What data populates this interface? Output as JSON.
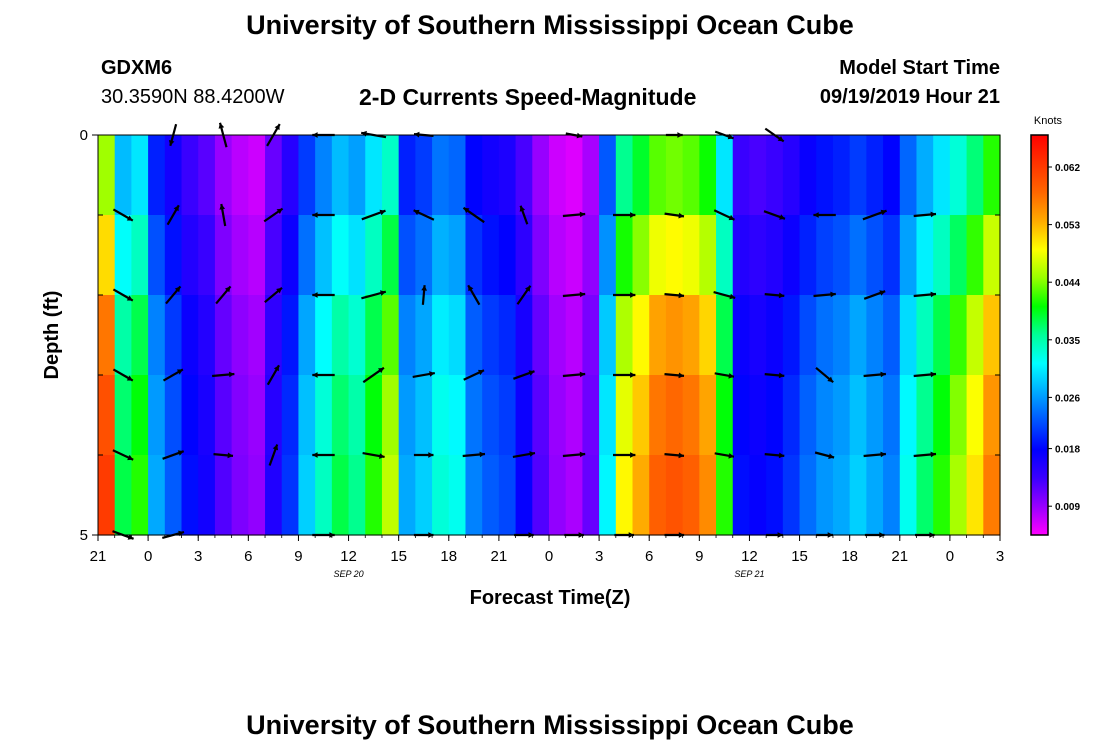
{
  "header": {
    "title": "University of Southern Mississippi Ocean Cube",
    "station": "GDXM6",
    "coords": "30.3590N 88.4200W",
    "subtitle": "2-D Currents Speed-Magnitude",
    "model_label": "Model Start Time",
    "model_time": "09/19/2019 Hour 21"
  },
  "footer": {
    "title": "University of Southern Mississippi Ocean Cube"
  },
  "chart_data": {
    "type": "heatmap",
    "title": "2-D Currents Speed-Magnitude",
    "xlabel": "Forecast Time(Z)",
    "ylabel": "Depth (ft)",
    "x_ticks": [
      "21",
      "0",
      "3",
      "6",
      "9",
      "12",
      "15",
      "18",
      "21",
      "0",
      "3",
      "6",
      "9",
      "12",
      "15",
      "18",
      "21",
      "0",
      "3"
    ],
    "x_date_labels": [
      {
        "label": "SEP 20",
        "tick_index": 5
      },
      {
        "label": "SEP 21",
        "tick_index": 13
      }
    ],
    "y_ticks": [
      "0",
      "5"
    ],
    "ylim": [
      0,
      5
    ],
    "hours_span": 54,
    "depth_rows": 5,
    "colorbar": {
      "unit": "Knots",
      "ticks": [
        "0.062",
        "0.053",
        "0.044",
        "0.035",
        "0.026",
        "0.018",
        "0.009"
      ],
      "min": 0.0045,
      "max": 0.067,
      "colors": [
        "#ff00ff",
        "#9900ff",
        "#3a00ff",
        "#0000ff",
        "#0055ff",
        "#00aaff",
        "#00ffff",
        "#00ff99",
        "#00ff00",
        "#99ff00",
        "#ffff00",
        "#ffaa00",
        "#ff6600",
        "#ff3300",
        "#ff0000"
      ]
    },
    "speed_by_hour": [
      0.06,
      0.037,
      0.04,
      0.026,
      0.022,
      0.018,
      0.016,
      0.012,
      0.01,
      0.009,
      0.015,
      0.02,
      0.028,
      0.033,
      0.037,
      0.035,
      0.04,
      0.045,
      0.026,
      0.028,
      0.032,
      0.031,
      0.024,
      0.022,
      0.021,
      0.017,
      0.012,
      0.009,
      0.008,
      0.011,
      0.03,
      0.048,
      0.052,
      0.057,
      0.058,
      0.057,
      0.054,
      0.04,
      0.018,
      0.017,
      0.018,
      0.02,
      0.023,
      0.025,
      0.026,
      0.028,
      0.026,
      0.024,
      0.031,
      0.036,
      0.04,
      0.044,
      0.049,
      0.055
    ],
    "depth_factors": [
      0.75,
      0.85,
      0.95,
      1.0,
      1.03
    ],
    "arrow_rows": [
      [
        null,
        [
          105,
          0.8
        ],
        [
          255,
          0.9
        ],
        [
          300,
          0.9
        ],
        [
          180,
          0.8
        ],
        [
          190,
          0.9
        ],
        [
          185,
          0.7
        ],
        [
          null
        ],
        [
          null
        ],
        [
          10,
          0.6
        ],
        [
          null
        ],
        [
          0,
          0.6
        ],
        [
          20,
          0.7
        ],
        [
          35,
          0.8
        ],
        [
          null
        ],
        [
          null
        ],
        [
          null
        ],
        [
          null
        ]
      ],
      [
        [
          30,
          0.8
        ],
        [
          300,
          0.8
        ],
        [
          260,
          0.8
        ],
        [
          325,
          0.8
        ],
        [
          180,
          0.8
        ],
        [
          340,
          0.9
        ],
        [
          205,
          0.8
        ],
        [
          215,
          0.9
        ],
        [
          250,
          0.7
        ],
        [
          355,
          0.8
        ],
        [
          0,
          0.8
        ],
        [
          8,
          0.7
        ],
        [
          25,
          0.8
        ],
        [
          20,
          0.8
        ],
        [
          180,
          0.8
        ],
        [
          340,
          0.9
        ],
        [
          355,
          0.8
        ],
        [
          null
        ]
      ],
      [
        [
          30,
          0.8
        ],
        [
          310,
          0.8
        ],
        [
          310,
          0.8
        ],
        [
          320,
          0.8
        ],
        [
          180,
          0.8
        ],
        [
          345,
          0.9
        ],
        [
          275,
          0.7
        ],
        [
          240,
          0.8
        ],
        [
          305,
          0.8
        ],
        [
          355,
          0.8
        ],
        [
          0,
          0.8
        ],
        [
          5,
          0.7
        ],
        [
          15,
          0.8
        ],
        [
          5,
          0.7
        ],
        [
          355,
          0.8
        ],
        [
          340,
          0.8
        ],
        [
          355,
          0.8
        ],
        [
          null
        ]
      ],
      [
        [
          30,
          0.8
        ],
        [
          330,
          0.8
        ],
        [
          355,
          0.8
        ],
        [
          300,
          0.8
        ],
        [
          180,
          0.8
        ],
        [
          325,
          0.9
        ],
        [
          350,
          0.8
        ],
        [
          335,
          0.8
        ],
        [
          340,
          0.8
        ],
        [
          355,
          0.8
        ],
        [
          0,
          0.8
        ],
        [
          5,
          0.7
        ],
        [
          10,
          0.7
        ],
        [
          5,
          0.7
        ],
        [
          40,
          0.8
        ],
        [
          355,
          0.8
        ],
        [
          355,
          0.8
        ],
        [
          null
        ]
      ],
      [
        [
          25,
          0.8
        ],
        [
          340,
          0.8
        ],
        [
          5,
          0.7
        ],
        [
          290,
          0.8
        ],
        [
          180,
          0.8
        ],
        [
          10,
          0.8
        ],
        [
          0,
          0.7
        ],
        [
          355,
          0.8
        ],
        [
          350,
          0.8
        ],
        [
          355,
          0.8
        ],
        [
          0,
          0.8
        ],
        [
          5,
          0.7
        ],
        [
          10,
          0.7
        ],
        [
          5,
          0.7
        ],
        [
          15,
          0.7
        ],
        [
          355,
          0.8
        ],
        [
          355,
          0.8
        ],
        [
          null
        ]
      ],
      [
        [
          20,
          0.8
        ],
        [
          345,
          0.8
        ],
        [
          null
        ],
        [
          null
        ],
        [
          0,
          0.8
        ],
        [
          null
        ],
        [
          0,
          0.7
        ],
        [
          null
        ],
        [
          0,
          0.7
        ],
        [
          0,
          0.7
        ],
        [
          0,
          0.7
        ],
        [
          0,
          0.7
        ],
        [
          null
        ],
        [
          0,
          0.6
        ],
        [
          0,
          0.6
        ],
        [
          0,
          0.7
        ],
        [
          0,
          0.7
        ],
        [
          null
        ]
      ]
    ]
  }
}
